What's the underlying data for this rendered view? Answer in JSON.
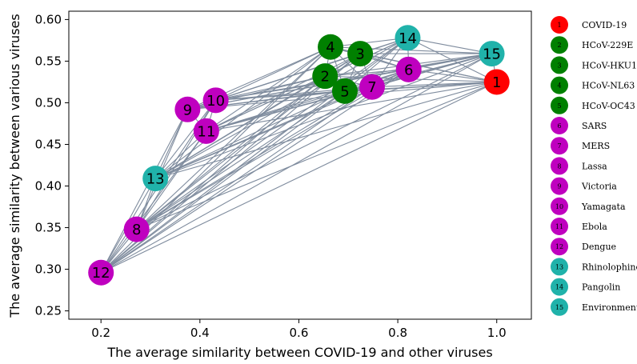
{
  "chart_data": {
    "type": "scatter",
    "title": "",
    "xlabel": "The average similarity between COVID-19 and other viruses",
    "ylabel": "The average similarity between various viruses",
    "xlim": [
      0.135,
      1.07
    ],
    "ylim": [
      0.24,
      0.61
    ],
    "xticks": [
      0.2,
      0.4,
      0.6,
      0.8,
      1.0
    ],
    "xtick_labels": [
      "0.2",
      "0.4",
      "0.6",
      "0.8",
      "1.0"
    ],
    "yticks": [
      0.25,
      0.3,
      0.35,
      0.4,
      0.45,
      0.5,
      0.55,
      0.6
    ],
    "ytick_labels": [
      "0.25",
      "0.30",
      "0.35",
      "0.40",
      "0.45",
      "0.50",
      "0.55",
      "0.60"
    ],
    "grid": false,
    "legend_position": "right",
    "colors": {
      "covid": "#ff0000",
      "coronavirus": "#008000",
      "other_virus": "#bf00bf",
      "animal_env": "#20b2aa",
      "edge": "#7f8c9e"
    },
    "points": [
      {
        "id": "1",
        "name": "COVID-19",
        "x": 1.0,
        "y": 0.525,
        "group": "covid"
      },
      {
        "id": "2",
        "name": "HCoV-229E",
        "x": 0.653,
        "y": 0.532,
        "group": "coronavirus"
      },
      {
        "id": "3",
        "name": "HCoV-HKU1",
        "x": 0.724,
        "y": 0.559,
        "group": "coronavirus"
      },
      {
        "id": "4",
        "name": "HCoV-NL63",
        "x": 0.664,
        "y": 0.567,
        "group": "coronavirus"
      },
      {
        "id": "5",
        "name": "HCoV-OC43",
        "x": 0.693,
        "y": 0.514,
        "group": "coronavirus"
      },
      {
        "id": "6",
        "name": "SARS",
        "x": 0.822,
        "y": 0.54,
        "group": "other_virus"
      },
      {
        "id": "7",
        "name": "MERS",
        "x": 0.748,
        "y": 0.519,
        "group": "other_virus"
      },
      {
        "id": "8",
        "name": "Lassa",
        "x": 0.272,
        "y": 0.348,
        "group": "other_virus"
      },
      {
        "id": "9",
        "name": "Victoria",
        "x": 0.375,
        "y": 0.492,
        "group": "other_virus"
      },
      {
        "id": "10",
        "name": "Yamagata",
        "x": 0.432,
        "y": 0.503,
        "group": "other_virus"
      },
      {
        "id": "11",
        "name": "Ebola",
        "x": 0.413,
        "y": 0.466,
        "group": "other_virus"
      },
      {
        "id": "12",
        "name": "Dengue",
        "x": 0.2,
        "y": 0.296,
        "group": "other_virus"
      },
      {
        "id": "13",
        "name": "Rhinolophine",
        "x": 0.31,
        "y": 0.409,
        "group": "animal_env"
      },
      {
        "id": "14",
        "name": "Pangolin",
        "x": 0.82,
        "y": 0.578,
        "group": "animal_env"
      },
      {
        "id": "15",
        "name": "Environment",
        "x": 0.99,
        "y": 0.559,
        "group": "animal_env"
      }
    ],
    "edges": "complete_graph"
  }
}
